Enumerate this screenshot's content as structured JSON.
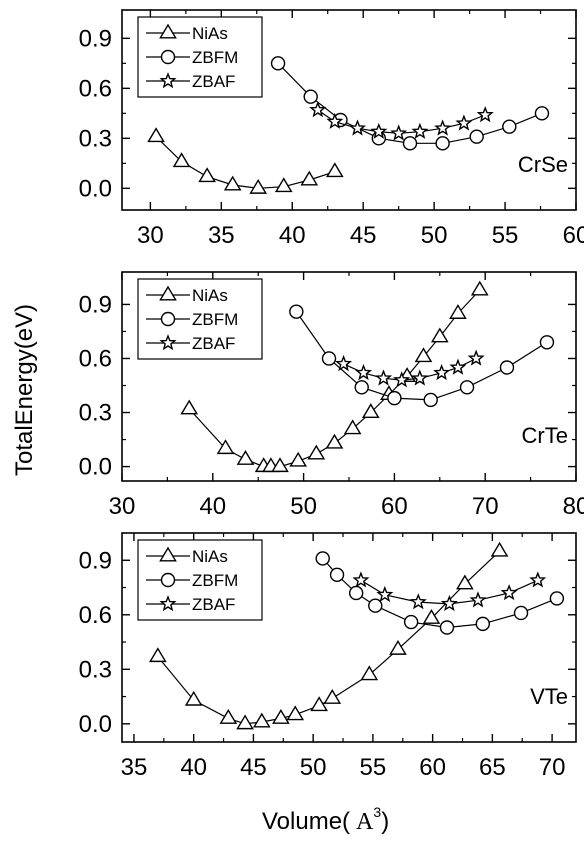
{
  "figure": {
    "ylabel": "TotalEnergy(eV)",
    "xlabel": "Volume(",
    "xlabel_unit": "A",
    "xlabel_sup": "3",
    "xlabel_close": ")"
  },
  "chart_data": [
    {
      "type": "line",
      "id": "crse",
      "panel_label": "CrSe",
      "xlim": [
        28,
        60
      ],
      "ylim": [
        -0.13,
        1.07
      ],
      "xticks": [
        30,
        35,
        40,
        45,
        50,
        55,
        60
      ],
      "yticks": [
        0.0,
        0.3,
        0.6,
        0.9
      ],
      "legend_position": "top-left",
      "series": [
        {
          "name": "NiAs",
          "marker": "triangle",
          "x": [
            30.4,
            32.2,
            34.0,
            35.8,
            37.6,
            39.4,
            41.2,
            43.0
          ],
          "y": [
            0.31,
            0.16,
            0.07,
            0.02,
            0.0,
            0.01,
            0.05,
            0.1
          ]
        },
        {
          "name": "ZBFM",
          "marker": "circle",
          "x": [
            39.0,
            41.3,
            43.4,
            46.1,
            48.3,
            50.6,
            53.0,
            55.3,
            57.6
          ],
          "y": [
            0.75,
            0.55,
            0.41,
            0.3,
            0.27,
            0.27,
            0.31,
            0.37,
            0.45
          ]
        },
        {
          "name": "ZBAF",
          "marker": "star",
          "x": [
            41.8,
            43.0,
            44.6,
            46.1,
            47.5,
            49.0,
            50.6,
            52.1,
            53.6
          ],
          "y": [
            0.47,
            0.4,
            0.36,
            0.34,
            0.33,
            0.34,
            0.36,
            0.39,
            0.44
          ]
        }
      ]
    },
    {
      "type": "line",
      "id": "crte",
      "panel_label": "CrTe",
      "xlim": [
        30,
        80
      ],
      "ylim": [
        -0.08,
        1.08
      ],
      "xticks": [
        30,
        40,
        50,
        60,
        70,
        80
      ],
      "yticks": [
        0.0,
        0.3,
        0.6,
        0.9
      ],
      "legend_position": "top-left",
      "series": [
        {
          "name": "NiAs",
          "marker": "triangle",
          "x": [
            37.4,
            41.4,
            43.6,
            45.6,
            46.4,
            47.4,
            49.4,
            51.4,
            53.4,
            55.4,
            57.4,
            59.4,
            61.4,
            63.2,
            65.0,
            67.0,
            69.4
          ],
          "y": [
            0.32,
            0.1,
            0.04,
            0.0,
            0.0,
            0.0,
            0.03,
            0.07,
            0.13,
            0.21,
            0.3,
            0.4,
            0.5,
            0.61,
            0.72,
            0.85,
            0.98
          ]
        },
        {
          "name": "ZBFM",
          "marker": "circle",
          "x": [
            49.2,
            52.8,
            56.4,
            60.0,
            64.0,
            68.0,
            72.4,
            76.8
          ],
          "y": [
            0.86,
            0.6,
            0.44,
            0.38,
            0.37,
            0.44,
            0.55,
            0.69
          ]
        },
        {
          "name": "ZBAF",
          "marker": "star",
          "x": [
            54.4,
            56.6,
            58.8,
            60.8,
            62.8,
            65.2,
            67.0,
            69.0
          ],
          "y": [
            0.57,
            0.52,
            0.49,
            0.48,
            0.49,
            0.52,
            0.55,
            0.6
          ]
        }
      ]
    },
    {
      "type": "line",
      "id": "vte",
      "panel_label": "VTe",
      "xlim": [
        34,
        72
      ],
      "ylim": [
        -0.1,
        1.05
      ],
      "xticks": [
        35,
        40,
        45,
        50,
        55,
        60,
        65,
        70
      ],
      "yticks": [
        0.0,
        0.3,
        0.6,
        0.9
      ],
      "legend_position": "top-left",
      "series": [
        {
          "name": "NiAs",
          "marker": "triangle",
          "x": [
            37.0,
            40.0,
            42.9,
            44.3,
            45.7,
            47.3,
            48.5,
            50.5,
            51.6,
            54.7,
            57.1,
            59.9,
            62.7,
            65.6
          ],
          "y": [
            0.37,
            0.13,
            0.03,
            0.0,
            0.01,
            0.03,
            0.05,
            0.1,
            0.14,
            0.27,
            0.41,
            0.58,
            0.77,
            0.95
          ]
        },
        {
          "name": "ZBFM",
          "marker": "circle",
          "x": [
            50.8,
            52.0,
            53.6,
            55.2,
            58.2,
            61.2,
            64.2,
            67.4,
            70.4
          ],
          "y": [
            0.91,
            0.82,
            0.72,
            0.65,
            0.56,
            0.53,
            0.55,
            0.61,
            0.69
          ]
        },
        {
          "name": "ZBAF",
          "marker": "star",
          "x": [
            54.0,
            56.0,
            58.8,
            61.4,
            63.8,
            66.4,
            68.8
          ],
          "y": [
            0.79,
            0.71,
            0.67,
            0.66,
            0.68,
            0.72,
            0.79
          ]
        }
      ]
    }
  ]
}
